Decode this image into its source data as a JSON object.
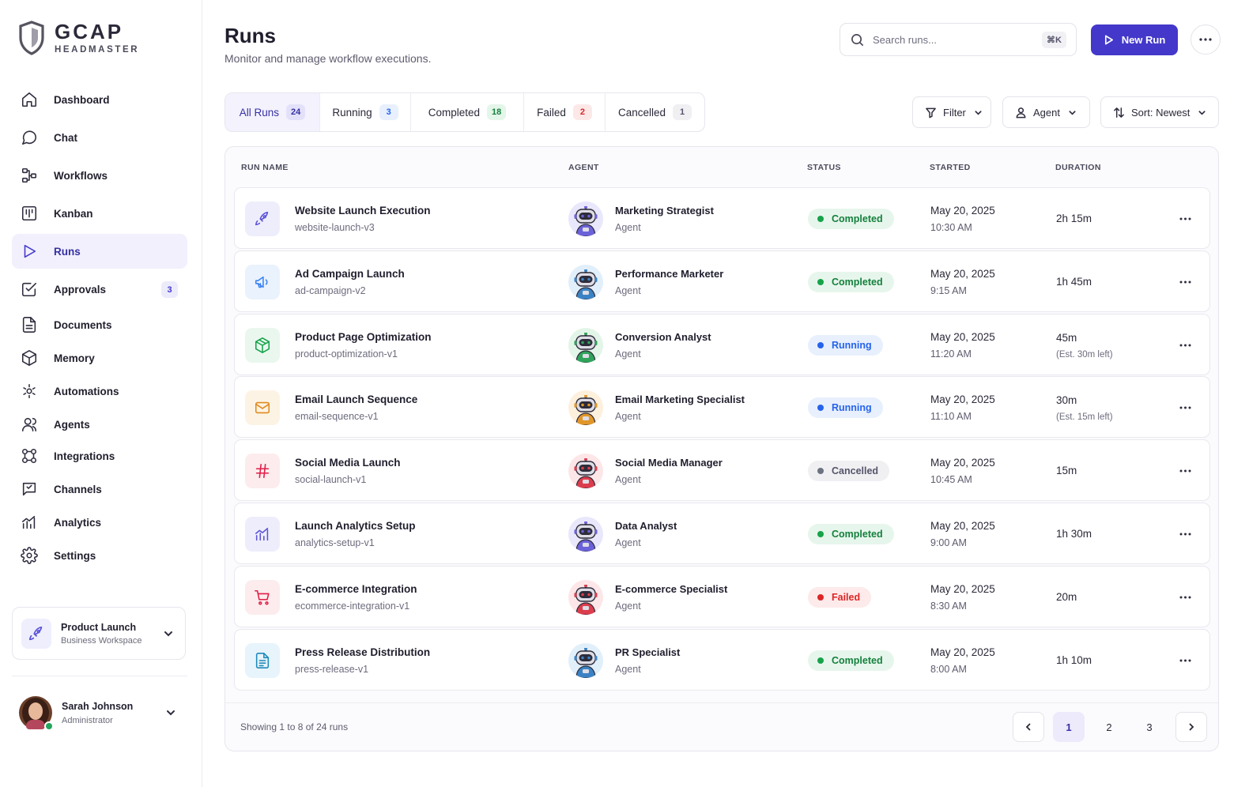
{
  "brand": {
    "name": "GCAP",
    "subtitle": "HEADMASTER"
  },
  "nav": [
    {
      "id": "dashboard",
      "label": "Dashboard",
      "icon": "home-icon"
    },
    {
      "id": "chat",
      "label": "Chat",
      "icon": "chat-icon"
    },
    {
      "id": "workflows",
      "label": "Workflows",
      "icon": "workflow-icon"
    },
    {
      "id": "kanban",
      "label": "Kanban",
      "icon": "kanban-icon"
    },
    {
      "id": "runs",
      "label": "Runs",
      "icon": "play-icon",
      "active": true
    },
    {
      "id": "approvals",
      "label": "Approvals",
      "icon": "check-square-icon",
      "badge": "3"
    },
    {
      "id": "documents",
      "label": "Documents",
      "icon": "document-icon"
    },
    {
      "id": "memory",
      "label": "Memory",
      "icon": "cube-icon"
    },
    {
      "id": "automations",
      "label": "Automations",
      "icon": "automation-icon"
    },
    {
      "id": "agents",
      "label": "Agents",
      "icon": "users-icon"
    },
    {
      "id": "integrations",
      "label": "Integrations",
      "icon": "integrations-icon"
    },
    {
      "id": "channels",
      "label": "Channels",
      "icon": "channels-icon"
    },
    {
      "id": "analytics",
      "label": "Analytics",
      "icon": "analytics-icon"
    },
    {
      "id": "settings",
      "label": "Settings",
      "icon": "gear-icon"
    }
  ],
  "workspace": {
    "title": "Product Launch",
    "subtitle": "Business Workspace"
  },
  "user": {
    "name": "Sarah Johnson",
    "role": "Administrator"
  },
  "header": {
    "title": "Runs",
    "subtitle": "Monitor and manage workflow executions.",
    "search_placeholder": "Search runs...",
    "search_shortcut": "⌘K",
    "new_run_label": "New Run"
  },
  "tabs": [
    {
      "label": "All Runs",
      "count": "24",
      "active": true
    },
    {
      "label": "Running",
      "count": "3"
    },
    {
      "label": "Completed",
      "count": "18"
    },
    {
      "label": "Failed",
      "count": "2"
    },
    {
      "label": "Cancelled",
      "count": "1"
    }
  ],
  "filters": {
    "filter_label": "Filter",
    "agent_label": "Agent",
    "sort_label": "Sort: Newest"
  },
  "columns": [
    "RUN NAME",
    "AGENT",
    "STATUS",
    "STARTED",
    "DURATION"
  ],
  "runs": [
    {
      "name": "Website Launch Execution",
      "slug": "website-launch-v3",
      "icon": "rocket-icon",
      "agent": "Marketing Strategist",
      "agent_role": "Agent",
      "status": "Completed",
      "date": "May 20, 2025",
      "time": "10:30 AM",
      "duration": "2h 15m",
      "est": ""
    },
    {
      "name": "Ad Campaign Launch",
      "slug": "ad-campaign-v2",
      "icon": "megaphone-icon",
      "agent": "Performance Marketer",
      "agent_role": "Agent",
      "status": "Completed",
      "date": "May 20, 2025",
      "time": "9:15 AM",
      "duration": "1h 45m",
      "est": ""
    },
    {
      "name": "Product Page Optimization",
      "slug": "product-optimization-v1",
      "icon": "box-icon",
      "agent": "Conversion Analyst",
      "agent_role": "Agent",
      "status": "Running",
      "date": "May 20, 2025",
      "time": "11:20 AM",
      "duration": "45m",
      "est": "(Est. 30m left)"
    },
    {
      "name": "Email Launch Sequence",
      "slug": "email-sequence-v1",
      "icon": "mail-icon",
      "agent": "Email Marketing Specialist",
      "agent_role": "Agent",
      "status": "Running",
      "date": "May 20, 2025",
      "time": "11:10 AM",
      "duration": "30m",
      "est": "(Est. 15m left)"
    },
    {
      "name": "Social Media Launch",
      "slug": "social-launch-v1",
      "icon": "hashtag-icon",
      "agent": "Social Media Manager",
      "agent_role": "Agent",
      "status": "Cancelled",
      "date": "May 20, 2025",
      "time": "10:45 AM",
      "duration": "15m",
      "est": ""
    },
    {
      "name": "Launch Analytics Setup",
      "slug": "analytics-setup-v1",
      "icon": "analytics-icon",
      "agent": "Data Analyst",
      "agent_role": "Agent",
      "status": "Completed",
      "date": "May 20, 2025",
      "time": "9:00 AM",
      "duration": "1h 30m",
      "est": ""
    },
    {
      "name": "E-commerce Integration",
      "slug": "ecommerce-integration-v1",
      "icon": "cart-icon",
      "agent": "E-commerce Specialist",
      "agent_role": "Agent",
      "status": "Failed",
      "date": "May 20, 2025",
      "time": "8:30 AM",
      "duration": "20m",
      "est": ""
    },
    {
      "name": "Press Release Distribution",
      "slug": "press-release-v1",
      "icon": "file-text-icon",
      "agent": "PR Specialist",
      "agent_role": "Agent",
      "status": "Completed",
      "date": "May 20, 2025",
      "time": "8:00 AM",
      "duration": "1h 10m",
      "est": ""
    }
  ],
  "pagination": {
    "showing": "Showing 1 to 8 of 24 runs",
    "pages": [
      "1",
      "2",
      "3"
    ],
    "current": "1"
  },
  "colors": {
    "accent": "#4338ca",
    "completed": "#16a34a",
    "running": "#2563eb",
    "failed": "#dc2626",
    "cancelled": "#6b7280"
  }
}
